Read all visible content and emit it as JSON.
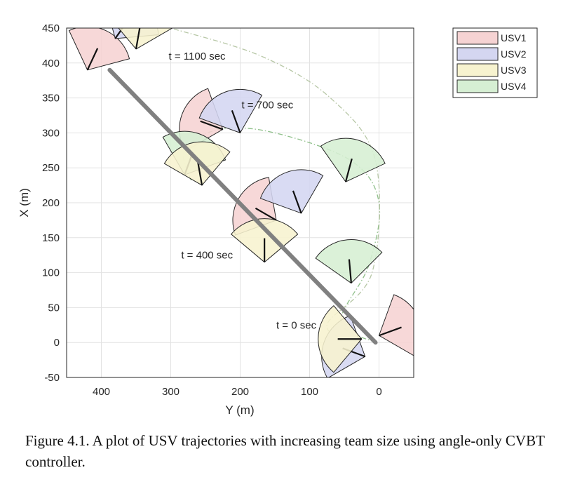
{
  "chart_data": {
    "type": "scatter",
    "xlabel": "Y (m)",
    "ylabel": "X (m)",
    "xlim": [
      450,
      -50
    ],
    "ylim": [
      -50,
      450
    ],
    "x_reversed": true,
    "x_ticks": [
      400,
      300,
      200,
      100,
      0
    ],
    "y_ticks": [
      -50,
      0,
      50,
      100,
      150,
      200,
      250,
      300,
      350,
      400,
      450
    ],
    "grid": true,
    "legend_position": "outside-top-right",
    "series": [
      {
        "name": "USV1",
        "color": "#f6d3d3"
      },
      {
        "name": "USV2",
        "color": "#d4d6f1"
      },
      {
        "name": "USV3",
        "color": "#f7f3cf"
      },
      {
        "name": "USV4",
        "color": "#d6efd3"
      }
    ],
    "team_path": {
      "color": "#808080",
      "points": [
        [
          388,
          390
        ],
        [
          5,
          0
        ]
      ]
    },
    "trajectories": [
      {
        "series": "USV4",
        "points": [
          [
            5,
            0
          ],
          [
            55,
            30
          ],
          [
            15,
            110
          ],
          [
            0,
            200
          ],
          [
            40,
            260
          ],
          [
            150,
            300
          ],
          [
            230,
            305
          ],
          [
            280,
            275
          ],
          [
            270,
            230
          ]
        ]
      },
      {
        "series": "USV3",
        "points": [
          [
            30,
            0
          ],
          [
            75,
            25
          ],
          [
            10,
            100
          ],
          [
            5,
            260
          ],
          [
            70,
            350
          ],
          [
            170,
            410
          ],
          [
            300,
            450
          ]
        ]
      }
    ],
    "annotations": [
      {
        "text": "t = 1100 sec",
        "x": 303,
        "y": 405
      },
      {
        "text": "t = 700 sec",
        "x": 198,
        "y": 335
      },
      {
        "text": "t = 400 sec",
        "x": 285,
        "y": 120
      },
      {
        "text": "t = 0 sec",
        "x": 148,
        "y": 20
      }
    ],
    "sensor_cones": [
      {
        "series": "USV1",
        "x": 420,
        "y": 390,
        "heading": 65
      },
      {
        "series": "USV2",
        "x": 380,
        "y": 435,
        "heading": 55
      },
      {
        "series": "USV3",
        "x": 350,
        "y": 420,
        "heading": 80
      },
      {
        "series": "USV4",
        "x": 395,
        "y": 450,
        "heading": 60
      },
      {
        "series": "USV1",
        "x": 225,
        "y": 305,
        "heading": 160
      },
      {
        "series": "USV2",
        "x": 200,
        "y": 300,
        "heading": 110
      },
      {
        "series": "USV4",
        "x": 280,
        "y": 240,
        "heading": 70
      },
      {
        "series": "USV3",
        "x": 255,
        "y": 225,
        "heading": 100
      },
      {
        "series": "USV1",
        "x": 148,
        "y": 175,
        "heading": 150
      },
      {
        "series": "USV2",
        "x": 112,
        "y": 185,
        "heading": 110
      },
      {
        "series": "USV4",
        "x": 48,
        "y": 230,
        "heading": 75
      },
      {
        "series": "USV3",
        "x": 165,
        "y": 115,
        "heading": 90
      },
      {
        "series": "USV4",
        "x": 40,
        "y": 85,
        "heading": 95
      },
      {
        "series": "USV1",
        "x": 0,
        "y": 10,
        "heading": 20
      },
      {
        "series": "USV2",
        "x": 20,
        "y": -20,
        "heading": 160
      },
      {
        "series": "USV3",
        "x": 25,
        "y": 5,
        "heading": 180
      }
    ]
  },
  "caption": "Figure 4.1. A plot of USV trajectories with increasing team size using angle-only CVBT controller."
}
